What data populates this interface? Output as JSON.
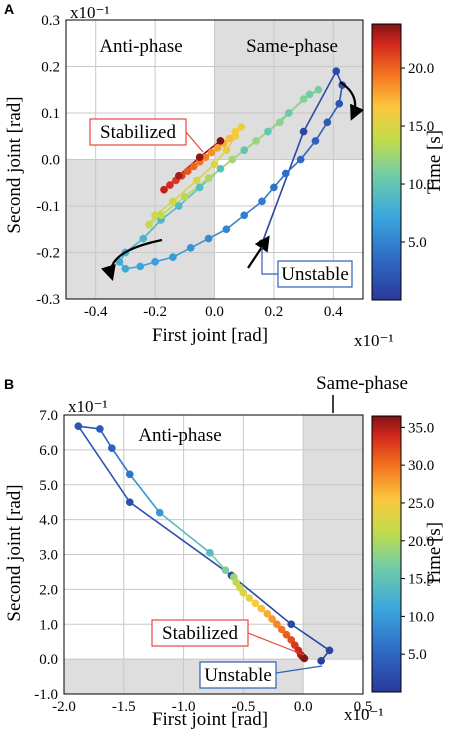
{
  "panel_a": {
    "label": "A"
  },
  "panel_b": {
    "label": "B"
  },
  "chart_data": [
    {
      "type": "scatter",
      "panel": "A",
      "xlabel": "First joint [rad]",
      "ylabel": "Second joint [rad]",
      "x_scale_label": "x10⁻¹",
      "y_scale_label": "x10⁻¹",
      "xlim": [
        -0.5,
        0.5
      ],
      "ylim": [
        -0.3,
        0.3
      ],
      "xticks": [
        -0.4,
        -0.2,
        0.0,
        0.2,
        0.4
      ],
      "xtick_labels": [
        "-0.4",
        "-0.2",
        "0.0",
        "0.2",
        "0.4"
      ],
      "yticks": [
        -0.3,
        -0.2,
        -0.1,
        0.0,
        0.1,
        0.2,
        0.3
      ],
      "ytick_labels": [
        "-0.3",
        "-0.2",
        "-0.1",
        "0.0",
        "0.1",
        "0.2",
        "0.3"
      ],
      "colorbar": {
        "label": "Time [s]",
        "range": [
          0,
          23.8
        ],
        "ticks": [
          5,
          10,
          15,
          20
        ],
        "tick_labels": [
          "5.0",
          "10.0",
          "15.0",
          "20.0"
        ]
      },
      "regions": [
        {
          "name": "Anti-phase",
          "label": "Anti-phase",
          "quadrants": [
            "top-left",
            "bottom-right"
          ]
        },
        {
          "name": "Same-phase",
          "label": "Same-phase",
          "quadrants": [
            "top-right",
            "bottom-left"
          ],
          "shaded": true
        }
      ],
      "annotations": [
        {
          "text": "Stabilized",
          "color": "#e8473b"
        },
        {
          "text": "Unstable",
          "color": "#2a62b3"
        }
      ],
      "grid": true,
      "points": [
        {
          "t": 0.4,
          "x": 0.16,
          "y": -0.18
        },
        {
          "t": 0.9,
          "x": 0.3,
          "y": 0.06
        },
        {
          "t": 1.3,
          "x": 0.41,
          "y": 0.19
        },
        {
          "t": 1.7,
          "x": 0.43,
          "y": 0.16
        },
        {
          "t": 2.1,
          "x": 0.42,
          "y": 0.12
        },
        {
          "t": 2.5,
          "x": 0.38,
          "y": 0.08
        },
        {
          "t": 2.9,
          "x": 0.34,
          "y": 0.04
        },
        {
          "t": 3.3,
          "x": 0.29,
          "y": 0.0
        },
        {
          "t": 3.7,
          "x": 0.24,
          "y": -0.03
        },
        {
          "t": 4.1,
          "x": 0.2,
          "y": -0.06
        },
        {
          "t": 4.5,
          "x": 0.16,
          "y": -0.09
        },
        {
          "t": 4.8,
          "x": 0.1,
          "y": -0.12
        },
        {
          "t": 5.2,
          "x": 0.04,
          "y": -0.15
        },
        {
          "t": 5.6,
          "x": -0.02,
          "y": -0.17
        },
        {
          "t": 6.0,
          "x": -0.08,
          "y": -0.19
        },
        {
          "t": 6.4,
          "x": -0.14,
          "y": -0.21
        },
        {
          "t": 6.8,
          "x": -0.2,
          "y": -0.22
        },
        {
          "t": 7.1,
          "x": -0.25,
          "y": -0.23
        },
        {
          "t": 7.4,
          "x": -0.3,
          "y": -0.235
        },
        {
          "t": 7.7,
          "x": -0.32,
          "y": -0.22
        },
        {
          "t": 8.0,
          "x": -0.3,
          "y": -0.2
        },
        {
          "t": 8.3,
          "x": -0.24,
          "y": -0.17
        },
        {
          "t": 8.6,
          "x": -0.18,
          "y": -0.13
        },
        {
          "t": 8.9,
          "x": -0.12,
          "y": -0.1
        },
        {
          "t": 9.2,
          "x": -0.05,
          "y": -0.06
        },
        {
          "t": 9.5,
          "x": 0.02,
          "y": -0.02
        },
        {
          "t": 9.8,
          "x": 0.1,
          "y": 0.02
        },
        {
          "t": 10.1,
          "x": 0.18,
          "y": 0.06
        },
        {
          "t": 10.4,
          "x": 0.25,
          "y": 0.1
        },
        {
          "t": 10.7,
          "x": 0.32,
          "y": 0.14
        },
        {
          "t": 11.0,
          "x": 0.35,
          "y": 0.15
        },
        {
          "t": 11.4,
          "x": 0.3,
          "y": 0.13
        },
        {
          "t": 11.8,
          "x": 0.22,
          "y": 0.08
        },
        {
          "t": 12.2,
          "x": 0.14,
          "y": 0.04
        },
        {
          "t": 12.6,
          "x": 0.06,
          "y": 0.0
        },
        {
          "t": 13.0,
          "x": -0.02,
          "y": -0.04
        },
        {
          "t": 13.3,
          "x": -0.1,
          "y": -0.08
        },
        {
          "t": 13.6,
          "x": -0.18,
          "y": -0.12
        },
        {
          "t": 13.9,
          "x": -0.22,
          "y": -0.14
        },
        {
          "t": 14.2,
          "x": -0.2,
          "y": -0.12
        },
        {
          "t": 14.5,
          "x": -0.14,
          "y": -0.09
        },
        {
          "t": 14.8,
          "x": -0.06,
          "y": -0.045
        },
        {
          "t": 15.1,
          "x": 0.0,
          "y": -0.01
        },
        {
          "t": 15.4,
          "x": 0.04,
          "y": 0.02
        },
        {
          "t": 15.7,
          "x": 0.07,
          "y": 0.05
        },
        {
          "t": 16.0,
          "x": 0.09,
          "y": 0.07
        },
        {
          "t": 16.5,
          "x": 0.07,
          "y": 0.06
        },
        {
          "t": 17.0,
          "x": 0.05,
          "y": 0.045
        },
        {
          "t": 17.5,
          "x": 0.03,
          "y": 0.035
        },
        {
          "t": 18.0,
          "x": 0.01,
          "y": 0.025
        },
        {
          "t": 18.5,
          "x": -0.01,
          "y": 0.015
        },
        {
          "t": 19.0,
          "x": -0.03,
          "y": 0.005
        },
        {
          "t": 19.5,
          "x": -0.05,
          "y": -0.005
        },
        {
          "t": 20.0,
          "x": -0.07,
          "y": -0.015
        },
        {
          "t": 20.5,
          "x": -0.09,
          "y": -0.025
        },
        {
          "t": 21.0,
          "x": -0.11,
          "y": -0.035
        },
        {
          "t": 21.5,
          "x": -0.13,
          "y": -0.045
        },
        {
          "t": 22.0,
          "x": -0.15,
          "y": -0.055
        },
        {
          "t": 22.5,
          "x": -0.17,
          "y": -0.065
        },
        {
          "t": 23.0,
          "x": -0.12,
          "y": -0.035
        },
        {
          "t": 23.5,
          "x": -0.05,
          "y": 0.005
        },
        {
          "t": 23.8,
          "x": 0.02,
          "y": 0.04
        }
      ]
    },
    {
      "type": "scatter",
      "panel": "B",
      "xlabel": "First joint [rad]",
      "ylabel": "Second joint [rad]",
      "x_scale_label": "x10⁻¹",
      "y_scale_label": "x10⁻¹",
      "xlim": [
        -2.0,
        0.5
      ],
      "ylim": [
        -1.0,
        7.0
      ],
      "xticks": [
        -2.0,
        -1.5,
        -1.0,
        -0.5,
        0.0,
        0.5
      ],
      "xtick_labels": [
        "-2.0",
        "-1.5",
        "-1.0",
        "-0.5",
        "0.0",
        "0.5"
      ],
      "yticks": [
        -1,
        0,
        1,
        2,
        3,
        4,
        5,
        6,
        7
      ],
      "ytick_labels": [
        "-1.0",
        "0.0",
        "1.0",
        "2.0",
        "3.0",
        "4.0",
        "5.0",
        "6.0",
        "7.0"
      ],
      "colorbar": {
        "label": "Time [s]",
        "range": [
          0,
          36.5
        ],
        "ticks": [
          5,
          10,
          15,
          20,
          25,
          30,
          35
        ],
        "tick_labels": [
          "5.0",
          "10.0",
          "15.0",
          "20.0",
          "25.0",
          "30.0",
          "35.0"
        ]
      },
      "regions": [
        {
          "name": "Anti-phase",
          "label": "Anti-phase",
          "quadrants": [
            "top-left",
            "bottom-right"
          ]
        },
        {
          "name": "Same-phase",
          "label": "Same-phase",
          "quadrants": [
            "top-right",
            "bottom-left"
          ],
          "shaded": true
        }
      ],
      "annotations": [
        {
          "text": "Stabilized",
          "color": "#e8473b"
        },
        {
          "text": "Unstable",
          "color": "#2a62b3"
        }
      ],
      "grid": true,
      "points": [
        {
          "t": 0.5,
          "x": 0.15,
          "y": -0.05
        },
        {
          "t": 1.0,
          "x": 0.22,
          "y": 0.25
        },
        {
          "t": 1.5,
          "x": -0.1,
          "y": 1.0
        },
        {
          "t": 2.0,
          "x": -0.6,
          "y": 2.4
        },
        {
          "t": 2.5,
          "x": -1.45,
          "y": 4.5
        },
        {
          "t": 3.0,
          "x": -1.88,
          "y": 6.68
        },
        {
          "t": 3.5,
          "x": -1.7,
          "y": 6.6
        },
        {
          "t": 4.5,
          "x": -1.6,
          "y": 6.05
        },
        {
          "t": 6.5,
          "x": -1.45,
          "y": 5.3
        },
        {
          "t": 9.5,
          "x": -1.2,
          "y": 4.2
        },
        {
          "t": 14.0,
          "x": -0.78,
          "y": 3.05
        },
        {
          "t": 17.0,
          "x": -0.65,
          "y": 2.55
        },
        {
          "t": 19.0,
          "x": -0.58,
          "y": 2.35
        },
        {
          "t": 21.0,
          "x": -0.56,
          "y": 2.2
        },
        {
          "t": 22.0,
          "x": -0.53,
          "y": 2.05
        },
        {
          "t": 23.0,
          "x": -0.5,
          "y": 1.9
        },
        {
          "t": 24.0,
          "x": -0.45,
          "y": 1.75
        },
        {
          "t": 25.0,
          "x": -0.4,
          "y": 1.6
        },
        {
          "t": 26.0,
          "x": -0.35,
          "y": 1.45
        },
        {
          "t": 27.0,
          "x": -0.3,
          "y": 1.3
        },
        {
          "t": 28.0,
          "x": -0.26,
          "y": 1.15
        },
        {
          "t": 29.0,
          "x": -0.22,
          "y": 1.0
        },
        {
          "t": 30.0,
          "x": -0.18,
          "y": 0.85
        },
        {
          "t": 31.0,
          "x": -0.14,
          "y": 0.7
        },
        {
          "t": 32.0,
          "x": -0.1,
          "y": 0.55
        },
        {
          "t": 33.0,
          "x": -0.07,
          "y": 0.4
        },
        {
          "t": 34.0,
          "x": -0.04,
          "y": 0.25
        },
        {
          "t": 35.0,
          "x": -0.02,
          "y": 0.12
        },
        {
          "t": 35.8,
          "x": 0.0,
          "y": 0.05
        },
        {
          "t": 36.3,
          "x": 0.01,
          "y": 0.02
        }
      ]
    }
  ]
}
